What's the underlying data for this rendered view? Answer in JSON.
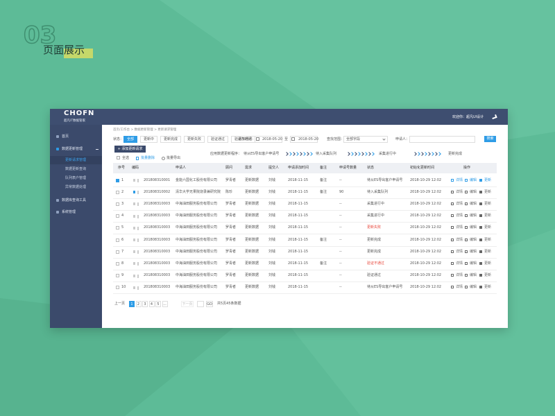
{
  "header": {
    "number": "03",
    "title": "页面展示"
  },
  "app": {
    "logo": "CHOFN",
    "logo_subtitle": "超凡IT数据管家",
    "welcome": "欢迎你：超凡UI设计"
  },
  "sidebar": [
    {
      "label": "首页"
    },
    {
      "label": "数据更新管理",
      "children": [
        "更新请求管理",
        "数据更新查询",
        "队列表户管理",
        "异常数据处理"
      ]
    },
    {
      "label": "数据库查询工具"
    },
    {
      "label": "系统管理"
    }
  ],
  "breadcrumb": "首页/工作台 > 数据更新管理 > 更新请求管理",
  "filters": {
    "status_label": "状态：",
    "statuses": [
      "全部",
      "更新中",
      "更新完成",
      "更新失败",
      "验证通过",
      "验证不通过"
    ],
    "time_label": "添加时间：",
    "date_from": "2018-05-20",
    "to": "至",
    "date_to": "2018-05-20",
    "scope_label": "查找范围：",
    "scope_value": "全部字段",
    "applicant_label": "申请人：",
    "search": "搜索"
  },
  "add_button": "+ 添加更新请求",
  "pipeline": {
    "label": "应用数据更新程序：",
    "steps": [
      "待从ES导出客户申请号",
      "待入采集队列",
      "采集进行中",
      "更新完成"
    ]
  },
  "bulk": [
    "全选",
    "批量删除",
    "批量导出"
  ],
  "table": {
    "columns": [
      "序号",
      "编码",
      "申请人",
      "顾问",
      "需求",
      "提交人",
      "申请添加时间",
      "备注",
      "申请号数量",
      "状态",
      "初始化更新时间",
      "操作"
    ],
    "rows": [
      {
        "cells": [
          1,
          "201808310001",
          "金能六国化工股份有限公司",
          "罗青者",
          "更新数据",
          "刘钱",
          "2018-11-15",
          "备注",
          "--",
          "待从ES导出客户申请号",
          "2018-10-29  12:02"
        ],
        "selected": true
      },
      {
        "cells": [
          2,
          "201808310002",
          "清华大学无果院烧录兼研究院",
          "陈珍",
          "更新数据",
          "刘钱",
          "2018-11-15",
          "备注",
          90,
          "待入采集队列",
          "2018-10-29  12:02"
        ]
      },
      {
        "cells": [
          3,
          "201808310003",
          "中海油田服务股份有限公司",
          "罗青者",
          "更新数据",
          "刘钱",
          "2018-11-15",
          null,
          "--",
          "采集进行中",
          "2018-10-29  12:02"
        ]
      },
      {
        "cells": [
          4,
          "201808310003",
          "中海油田服务股份有限公司",
          "罗青者",
          "更新数据",
          "刘钱",
          "2018-11-15",
          null,
          "--",
          "采集进行中",
          "2018-10-29  12:02"
        ]
      },
      {
        "cells": [
          5,
          "201808310003",
          "中海油田服务股份有限公司",
          "罗青者",
          "更新数据",
          "刘钱",
          "2018-11-15",
          null,
          "--",
          "更新失败",
          "2018-10-29  12:02"
        ],
        "status_color": "#e8483c"
      },
      {
        "cells": [
          6,
          "201808310003",
          "中海油田服务股份有限公司",
          "罗青者",
          "更新数据",
          "刘钱",
          "2018-11-15",
          "备注",
          "--",
          "更新完成",
          "2018-10-29  12:02"
        ]
      },
      {
        "cells": [
          7,
          "201808310003",
          "中海油田服务股份有限公司",
          "罗青者",
          "更新数据",
          "刘钱",
          "2018-11-15",
          null,
          "--",
          "更新完成",
          "2018-10-29  12:02"
        ]
      },
      {
        "cells": [
          8,
          "201808310003",
          "中海油田服务股份有限公司",
          "罗青者",
          "更新数据",
          "刘钱",
          "2018-11-15",
          "备注",
          "--",
          "验证不通过",
          "2018-10-29  12:02"
        ],
        "status_color": "#e8483c"
      },
      {
        "cells": [
          9,
          "201808310003",
          "中海油田服务股份有限公司",
          "罗青者",
          "更新数据",
          "刘钱",
          "2018-11-15",
          null,
          "--",
          "验证通过",
          "2018-10-29  12:02"
        ]
      },
      {
        "cells": [
          10,
          "201808310003",
          "中海油田服务股份有限公司",
          "罗青者",
          "更新数据",
          "刘钱",
          "2018-11-15",
          null,
          "--",
          "待从ES导出客户申请号",
          "2018-10-29  12:02"
        ]
      }
    ],
    "actions": [
      "详情",
      "编辑",
      "更新"
    ]
  },
  "pagination": {
    "prev": "上一页",
    "pages": [
      "1",
      "2",
      "3",
      "4",
      "5",
      "..."
    ],
    "next": "下一页",
    "go": "GO",
    "summary": "共5页45条数据"
  }
}
